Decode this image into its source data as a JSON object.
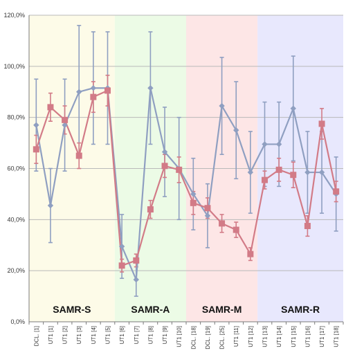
{
  "chart_data": {
    "type": "line",
    "ylim": [
      0,
      120
    ],
    "yticks": [
      "0,0%",
      "20,0%",
      "40,0%",
      "60,0%",
      "80,0%",
      "100,0%",
      "120,0%"
    ],
    "grid": true,
    "x": [
      "DCL. [1]",
      "UT1 [1]",
      "UT1 [2]",
      "UT1 [3]",
      "UT1 [4]",
      "UT1 [5]",
      "UT1 [6]",
      "UT1 [7]",
      "UT1 [8]",
      "UT1 [9]",
      "UT1 [10]",
      "DCL. [18]",
      "DCL. [19]",
      "DCL. [25]",
      "UT1 [11]",
      "UT1 [12]",
      "UT1 [13]",
      "UT1 [14]",
      "UT1 [15]",
      "UT1 [16]",
      "UT1 [17]",
      "UT1 [18]"
    ],
    "bands": [
      {
        "label": "SAMR-S",
        "start": 0,
        "end": 5,
        "color": "#fdfbe8"
      },
      {
        "label": "SAMR-A",
        "start": 6,
        "end": 10,
        "color": "#ecfbe6"
      },
      {
        "label": "SAMR-M",
        "start": 11,
        "end": 15,
        "color": "#fde6e6"
      },
      {
        "label": "SAMR-R",
        "start": 16,
        "end": 21,
        "color": "#e8e8fd"
      }
    ],
    "series": [
      {
        "color": "#8f9fc1",
        "marker": "diamond",
        "values": [
          77,
          45.5,
          77,
          90,
          91.5,
          91.5,
          29.5,
          16.5,
          91.5,
          66.5,
          60,
          50,
          41.5,
          84.5,
          75,
          58.5,
          69.5,
          69.5,
          83.5,
          58.5,
          58.5,
          50
        ],
        "err": [
          18,
          14.5,
          18,
          26,
          22,
          22,
          12.5,
          6.5,
          22,
          17.5,
          20,
          14,
          12.5,
          19,
          19,
          16,
          16.5,
          16.5,
          20.5,
          16,
          16,
          14.5
        ]
      },
      {
        "color": "#d27b87",
        "marker": "square",
        "values": [
          67.5,
          84,
          79,
          65,
          88,
          90.5,
          22,
          24,
          44,
          61,
          59.5,
          46.5,
          44.5,
          38.5,
          36,
          26.5,
          55.5,
          59.5,
          57.5,
          37.5,
          77.5,
          51
        ],
        "err": [
          5.5,
          5.5,
          5.5,
          5,
          6,
          6,
          2.5,
          2.5,
          3.5,
          4.5,
          5,
          4.5,
          4,
          3.5,
          3,
          2.5,
          3.5,
          4.5,
          5,
          4,
          6,
          4
        ]
      }
    ]
  }
}
